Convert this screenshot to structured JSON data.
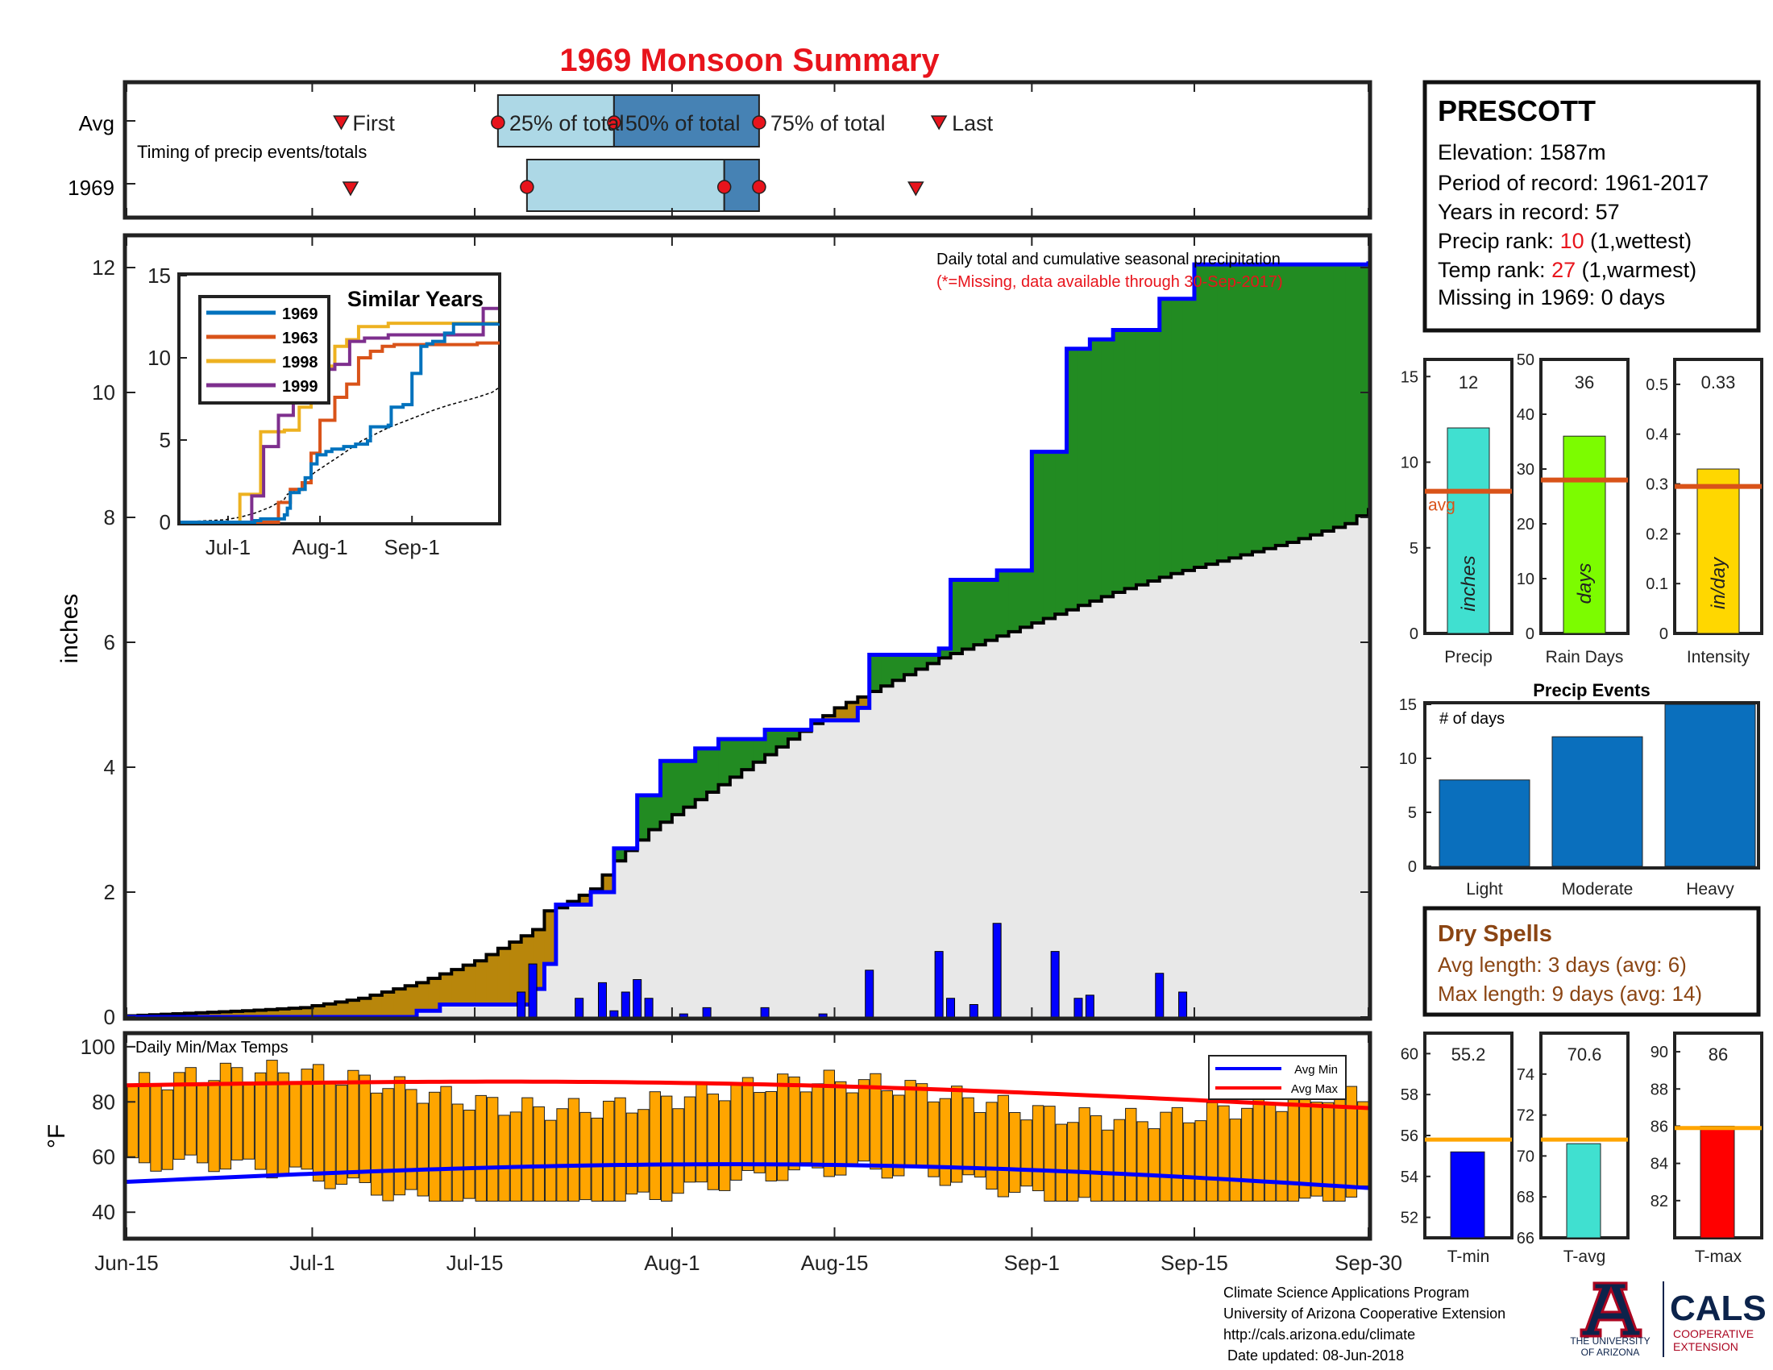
{
  "title": "1969 Monsoon Summary",
  "timing": {
    "label": "Timing of precip events/totals",
    "row_avg": "Avg",
    "row_year": "1969",
    "first_label": "First",
    "last_label": "Last",
    "p25_label": "25% of total",
    "p50_label": "50% of total",
    "p75_label": "75% of total",
    "avg": {
      "first": 18.5,
      "p25": 32,
      "p50": 42,
      "p75": 54.5,
      "last": 70
    },
    "year": {
      "first": 19.3,
      "p25": 34.5,
      "p50": 51.5,
      "p75": 54.5,
      "last": 68
    }
  },
  "station": {
    "name": "PRESCOTT",
    "elevation": "Elevation: 1587m",
    "period": "Period of record: 1961-2017",
    "years": "Years in record: 57",
    "precip_rank_prefix": "Precip rank: ",
    "precip_rank_value": "10",
    "precip_rank_suffix": " (1,wettest)",
    "temp_rank_prefix": "Temp rank: ",
    "temp_rank_value": "27",
    "temp_rank_suffix": " (1,warmest)",
    "missing": "Missing in 1969: 0 days"
  },
  "main_chart": {
    "note1": "Daily total and cumulative seasonal precipitation",
    "note2": "(*=Missing, data available through 30-Sep-2017)",
    "ylabel": "inches",
    "x_ticks": [
      "Jun-15",
      "Jul-1",
      "Jul-15",
      "Aug-1",
      "Aug-15",
      "Sep-1",
      "Sep-15",
      "Sep-30"
    ],
    "x_tick_days": [
      0,
      16,
      30,
      47,
      61,
      78,
      92,
      107
    ],
    "y_ticks": [
      "0",
      "2",
      "4",
      "6",
      "8",
      "10",
      "12"
    ]
  },
  "temp_chart": {
    "title": "Daily Min/Max Temps",
    "ylabel": "°F",
    "y_ticks": [
      "40",
      "60",
      "80",
      "100"
    ],
    "legend_min": "Avg Min",
    "legend_max": "Avg Max"
  },
  "similar": {
    "title": "Similar Years",
    "x_ticks": [
      "Jul-1",
      "Aug-1",
      "Sep-1"
    ],
    "y_ticks": [
      "0",
      "5",
      "10",
      "15"
    ]
  },
  "bars_top": [
    {
      "id": "precip",
      "axis_label": "Precip",
      "unit": "inches",
      "value_text": "12",
      "value": 12,
      "avg": 8.3,
      "max": 16,
      "ticks": [
        "0",
        "5",
        "10",
        "15"
      ],
      "tick_vals": [
        0,
        5,
        10,
        15
      ],
      "color": "#40e0d0",
      "avg_label": "avg"
    },
    {
      "id": "raindays",
      "axis_label": "Rain Days",
      "unit": "days",
      "value_text": "36",
      "value": 36,
      "avg": 28,
      "max": 50,
      "ticks": [
        "0",
        "10",
        "20",
        "30",
        "40",
        "50"
      ],
      "tick_vals": [
        0,
        10,
        20,
        30,
        40,
        50
      ],
      "color": "#7cfc00",
      "avg_label": ""
    },
    {
      "id": "intensity",
      "axis_label": "Intensity",
      "unit": "in/day",
      "value_text": "0.33",
      "value": 0.33,
      "avg": 0.295,
      "max": 0.55,
      "ticks": [
        "0",
        "0.1",
        "0.2",
        "0.3",
        "0.4",
        "0.5"
      ],
      "tick_vals": [
        0,
        0.1,
        0.2,
        0.3,
        0.4,
        0.5
      ],
      "color": "#ffd700",
      "avg_label": ""
    }
  ],
  "events": {
    "title": "Precip Events",
    "sublabel": "# of days",
    "categories": [
      "Light",
      "Moderate",
      "Heavy"
    ],
    "values": [
      8,
      12,
      15
    ],
    "ticks": [
      "0",
      "5",
      "10",
      "15"
    ],
    "color": "#0a6fbd"
  },
  "dry_spells": {
    "title": "Dry Spells",
    "avg_length": "Avg length: 3 days (avg: 6)",
    "max_length": "Max length: 9 days (avg: 14)"
  },
  "bars_temp": [
    {
      "id": "tmin",
      "axis_label": "T-min",
      "value_text": "55.2",
      "value": 55.2,
      "avg": 55.8,
      "min": 51,
      "max": 61,
      "ticks": [
        "52",
        "54",
        "56",
        "58",
        "60"
      ],
      "tick_vals": [
        52,
        54,
        56,
        58,
        60
      ],
      "color": "#0000ff"
    },
    {
      "id": "tavg",
      "axis_label": "T-avg",
      "value_text": "70.6",
      "value": 70.6,
      "avg": 70.8,
      "min": 66,
      "max": 76,
      "ticks": [
        "66",
        "68",
        "70",
        "72",
        "74"
      ],
      "tick_vals": [
        66,
        68,
        70,
        72,
        74
      ],
      "color": "#40e0d0"
    },
    {
      "id": "tmax",
      "axis_label": "T-max",
      "value_text": "86",
      "value": 86,
      "avg": 85.9,
      "min": 80,
      "max": 91,
      "ticks": [
        "82",
        "84",
        "86",
        "88",
        "90"
      ],
      "tick_vals": [
        82,
        84,
        86,
        88,
        90
      ],
      "color": "#ff0000"
    }
  ],
  "footer": {
    "line1": "Climate Science Applications Program",
    "line2": "University of Arizona Cooperative Extension",
    "line3": "http://cals.arizona.edu/climate",
    "line4": " Date updated: 08-Jun-2018"
  },
  "logos": {
    "ua_line1": "THE UNIVERSITY",
    "ua_line2": "OF ARIZONA",
    "cals": "CALS",
    "coop1": "COOPERATIVE",
    "coop2": "EXTENSION"
  },
  "chart_data": {
    "type": "area",
    "title": "1969 Monsoon Summary",
    "ylabel": "inches",
    "x_unit": "days since Jun-15",
    "ylim": [
      0,
      12.5
    ],
    "cumulative_avg": [
      [
        0,
        0.02
      ],
      [
        5,
        0.06
      ],
      [
        10,
        0.1
      ],
      [
        15,
        0.15
      ],
      [
        20,
        0.3
      ],
      [
        25,
        0.55
      ],
      [
        30,
        0.9
      ],
      [
        35,
        1.4
      ],
      [
        36,
        1.7
      ],
      [
        37,
        1.75
      ],
      [
        40,
        2.05
      ],
      [
        42,
        2.5
      ],
      [
        45,
        3.0
      ],
      [
        50,
        3.6
      ],
      [
        55,
        4.2
      ],
      [
        61,
        4.95
      ],
      [
        65,
        5.3
      ],
      [
        70,
        5.75
      ],
      [
        75,
        6.1
      ],
      [
        80,
        6.45
      ],
      [
        85,
        6.8
      ],
      [
        90,
        7.1
      ],
      [
        95,
        7.35
      ],
      [
        100,
        7.6
      ],
      [
        105,
        7.9
      ],
      [
        107,
        8.15
      ]
    ],
    "cumulative_1969": [
      [
        0,
        0
      ],
      [
        25,
        0.1
      ],
      [
        27,
        0.2
      ],
      [
        34,
        0.2
      ],
      [
        35,
        0.45
      ],
      [
        36,
        0.85
      ],
      [
        36.5,
        1.8
      ],
      [
        40,
        2.0
      ],
      [
        42,
        2.7
      ],
      [
        44,
        3.55
      ],
      [
        46,
        4.1
      ],
      [
        49,
        4.3
      ],
      [
        51,
        4.45
      ],
      [
        55,
        4.6
      ],
      [
        59,
        4.75
      ],
      [
        63,
        4.95
      ],
      [
        64,
        5.8
      ],
      [
        70,
        5.9
      ],
      [
        71,
        7.0
      ],
      [
        75,
        7.15
      ],
      [
        78,
        9.05
      ],
      [
        81,
        10.7
      ],
      [
        83,
        10.85
      ],
      [
        85,
        11.0
      ],
      [
        89,
        11.5
      ],
      [
        92,
        12.05
      ],
      [
        107,
        12.1
      ]
    ],
    "daily_precip": [
      [
        34,
        0.4
      ],
      [
        35,
        0.85
      ],
      [
        39,
        0.3
      ],
      [
        41,
        0.55
      ],
      [
        42,
        0.1
      ],
      [
        43,
        0.4
      ],
      [
        44,
        0.6
      ],
      [
        45,
        0.3
      ],
      [
        48,
        0.05
      ],
      [
        50,
        0.15
      ],
      [
        55,
        0.15
      ],
      [
        60,
        0.05
      ],
      [
        64,
        0.75
      ],
      [
        70,
        1.05
      ],
      [
        71,
        0.3
      ],
      [
        73,
        0.2
      ],
      [
        75,
        1.5
      ],
      [
        80,
        1.05
      ],
      [
        82,
        0.3
      ],
      [
        83,
        0.35
      ],
      [
        89,
        0.7
      ],
      [
        91,
        0.4
      ]
    ],
    "temp_avg_max_ends": [
      86,
      80
    ],
    "temp_avg_min_ends": [
      51,
      46
    ]
  }
}
